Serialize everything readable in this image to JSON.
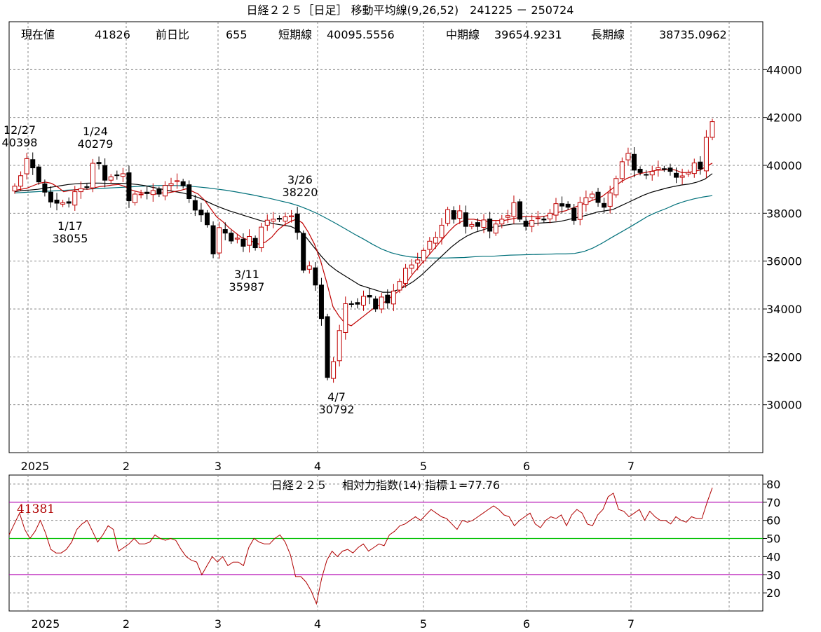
{
  "header": {
    "title": "日経２２５［日足］ 移動平均線(9,26,52)　241225 － 250724",
    "info_current_label": "現在値",
    "info_current": "41826",
    "info_change_label": "前日比",
    "info_change": "655",
    "info_short_label": "短期線",
    "info_short": "40095.5556",
    "info_mid_label": "中期線",
    "info_mid": "39654.9231",
    "info_long_label": "長期線",
    "info_long": "38735.0962"
  },
  "colors": {
    "up": "#c00000",
    "down": "#000000",
    "short_ma": "#c00000",
    "mid_ma": "#000000",
    "long_ma": "#00707a",
    "rsi_line": "#b00000",
    "rsi_70_30": "#b000b0",
    "rsi_50": "#00c000",
    "grid": "#888888"
  },
  "chart_data": [
    {
      "type": "candlestick",
      "ylim": [
        28000,
        46000
      ],
      "yticks": [
        "44000",
        "42000",
        "40000",
        "38000",
        "36000",
        "34000",
        "32000",
        "30000"
      ],
      "xticks": [
        "2025",
        "2",
        "3",
        "4",
        "5",
        "6",
        "7"
      ],
      "annotations": [
        {
          "date": "12/27",
          "value": "40398"
        },
        {
          "date": "1/24",
          "value": "40279"
        },
        {
          "date": "1/17",
          "value": "38055"
        },
        {
          "date": "3/26",
          "value": "38220"
        },
        {
          "date": "3/11",
          "value": "35987"
        },
        {
          "date": "4/7",
          "value": "30792"
        }
      ],
      "close": [
        39130,
        39568,
        40281,
        39895,
        39308,
        38880,
        38470,
        38420,
        38440,
        38420,
        38900,
        39028,
        39100,
        40087,
        40070,
        39380,
        39520,
        39580,
        39650,
        38520,
        38800,
        38800,
        38820,
        38950,
        38800,
        39162,
        39240,
        39360,
        39150,
        38610,
        38130,
        37930,
        37520,
        36300,
        37400,
        37170,
        36840,
        36960,
        36620,
        37030,
        36560,
        37420,
        37710,
        37750,
        37750,
        37850,
        37890,
        37200,
        35620,
        35800,
        35000,
        33600,
        31140,
        31800,
        33100,
        34220,
        34190,
        34200,
        34530,
        34500,
        34000,
        34500,
        34250,
        34750,
        35150,
        35700,
        35840,
        36050,
        36450,
        36830,
        36990,
        37500,
        38150,
        37750,
        38100,
        37450,
        37530,
        37450,
        37720,
        37250,
        37550,
        37750,
        37900,
        38440,
        37750,
        37450,
        37700,
        37800,
        37720,
        38000,
        38400,
        38300,
        38250,
        37700,
        38450,
        38650,
        38800,
        38450,
        38250,
        38850,
        39450,
        40150,
        40500,
        39800,
        39700,
        39600,
        39750,
        39900,
        39850,
        39750,
        39500,
        39560,
        39700,
        40100,
        39850,
        41171,
        41826
      ],
      "ma_short": [
        38950,
        39000,
        39050,
        39150,
        39250,
        39300,
        39250,
        39100,
        38900,
        38950,
        38980,
        39020,
        39000,
        39060,
        39120,
        39140,
        39180,
        39200,
        39120,
        38980,
        38900,
        38850,
        38850,
        38800,
        38850,
        38850,
        38900,
        38950,
        39020,
        38920,
        38800,
        38550,
        38200,
        37850,
        37650,
        37400,
        37200,
        37000,
        36900,
        36800,
        36700,
        36800,
        37000,
        37300,
        37500,
        37650,
        37750,
        37600,
        37200,
        36700,
        36000,
        35100,
        34100,
        33700,
        33400,
        33300,
        33500,
        33700,
        33900,
        34100,
        34200,
        34400,
        34600,
        34800,
        35100,
        35450,
        35750,
        36050,
        36350,
        36650,
        36950,
        37250,
        37500,
        37650,
        37750,
        37750,
        37700,
        37650,
        37700,
        37700,
        37700,
        37750,
        37800,
        37850,
        37870,
        37850,
        37850,
        37900,
        37950,
        38050,
        38100,
        38200,
        38300,
        38400,
        38500,
        38600,
        38700,
        38900,
        39100,
        39300,
        39450,
        39550,
        39650,
        39700,
        39750,
        39800,
        39800,
        39850,
        39800,
        39700,
        39700,
        39750,
        39800,
        39950,
        40095
      ],
      "ma_mid": [
        38900,
        38950,
        38970,
        39000,
        39050,
        39100,
        39150,
        39200,
        39230,
        39250,
        39260,
        39260,
        39250,
        39250,
        39250,
        39230,
        39200,
        39150,
        39080,
        39020,
        38950,
        38900,
        38840,
        38750,
        38650,
        38500,
        38350,
        38220,
        38100,
        38000,
        37900,
        37800,
        37700,
        37620,
        37550,
        37500,
        37450,
        37300,
        37000,
        36600,
        36200,
        35850,
        35600,
        35400,
        35200,
        35000,
        34900,
        34800,
        34700,
        34700,
        34800,
        34950,
        35150,
        35400,
        35700,
        36000,
        36300,
        36600,
        36850,
        37050,
        37200,
        37300,
        37400,
        37450,
        37500,
        37550,
        37550,
        37560,
        37580,
        37600,
        37620,
        37650,
        37720,
        37800,
        37870,
        37950,
        38050,
        38100,
        38150,
        38300,
        38450,
        38600,
        38750,
        38870,
        38960,
        39050,
        39120,
        39180,
        39220,
        39300,
        39420,
        39654
      ],
      "ma_long": [
        38850,
        38870,
        38890,
        38910,
        38930,
        38950,
        38970,
        38990,
        39010,
        39030,
        39050,
        39070,
        39090,
        39110,
        39130,
        39150,
        39160,
        39160,
        39150,
        39130,
        39100,
        39060,
        39010,
        38960,
        38900,
        38830,
        38760,
        38680,
        38600,
        38510,
        38420,
        38300,
        38150,
        37980,
        37780,
        37570,
        37350,
        37130,
        36920,
        36700,
        36500,
        36350,
        36250,
        36180,
        36150,
        36130,
        36130,
        36130,
        36140,
        36150,
        36180,
        36200,
        36200,
        36230,
        36250,
        36260,
        36270,
        36280,
        36290,
        36300,
        36300,
        36320,
        36400,
        36550,
        36750,
        36980,
        37200,
        37420,
        37650,
        37880,
        38050,
        38200,
        38370,
        38500,
        38600,
        38680,
        38735
      ]
    },
    {
      "type": "line",
      "title": "日経２２５　 相対力指数(14) 指標１=77.76",
      "ylim": [
        10,
        85
      ],
      "yticks": [
        "80",
        "70",
        "60",
        "50",
        "40",
        "30",
        "20"
      ],
      "xticks": [
        "2025",
        "2",
        "3",
        "4",
        "5",
        "6",
        "7"
      ],
      "ref_lines": [
        70,
        50,
        30
      ],
      "price_at_70_label": "41381",
      "values": [
        52,
        58,
        64,
        55,
        50,
        54,
        60,
        53,
        44,
        42,
        42,
        44,
        48,
        55,
        58,
        60,
        54,
        48,
        52,
        57,
        55,
        43,
        45,
        47,
        50,
        47,
        47,
        48,
        52,
        50,
        49,
        50,
        49,
        44,
        40,
        38,
        37,
        30,
        35,
        40,
        37,
        40,
        35,
        37,
        37,
        35,
        45,
        50,
        48,
        47,
        47,
        50,
        52,
        48,
        41,
        29,
        29,
        26,
        21,
        14,
        28,
        38,
        43,
        40,
        43,
        44,
        42,
        45,
        47,
        43,
        45,
        47,
        46,
        52,
        54,
        57,
        58,
        60,
        62,
        60,
        63,
        66,
        64,
        62,
        61,
        58,
        55,
        60,
        59,
        60,
        62,
        64,
        66,
        68,
        66,
        63,
        62,
        57,
        60,
        62,
        64,
        58,
        56,
        60,
        62,
        61,
        63,
        57,
        63,
        66,
        64,
        58,
        57,
        63,
        66,
        73,
        75,
        66,
        65,
        62,
        64,
        66,
        60,
        65,
        62,
        60,
        60,
        58,
        62,
        60,
        59,
        62,
        61,
        61,
        70,
        78
      ]
    }
  ]
}
